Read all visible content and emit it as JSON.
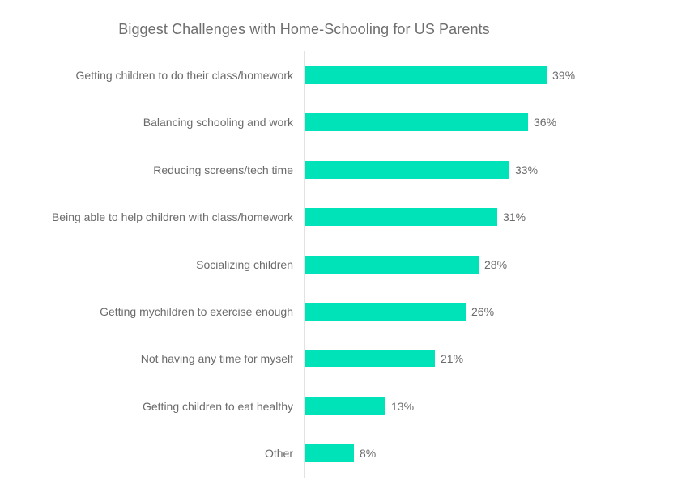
{
  "chart_data": {
    "type": "bar",
    "orientation": "horizontal",
    "title": "Biggest Challenges with Home-Schooling for US Parents",
    "xlabel": "",
    "ylabel": "",
    "categories": [
      "Getting children to do their class/homework",
      "Balancing schooling and work",
      "Reducing screens/tech time",
      "Being able to help children with class/homework",
      "Socializing children",
      "Getting mychildren to exercise enough",
      "Not having any time for myself",
      "Getting children to eat healthy",
      "Other"
    ],
    "values": [
      39,
      36,
      33,
      31,
      28,
      26,
      21,
      13,
      8
    ],
    "value_labels": [
      "39%",
      "36%",
      "33%",
      "31%",
      "28%",
      "26%",
      "21%",
      "13%",
      "8%"
    ],
    "unit": "%",
    "grid": false,
    "legend": null,
    "bar_color": "#00e3b9"
  },
  "colors": {
    "bar": "#00e3b9",
    "text": "#6b6b6b",
    "axis": "#e2e2e2"
  }
}
